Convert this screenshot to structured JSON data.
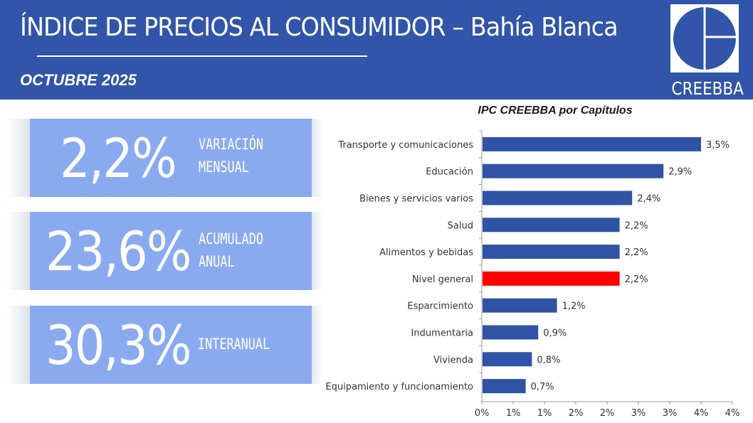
{
  "header": {
    "title": "ÍNDICE DE PRECIOS AL CONSUMIDOR – Bahía Blanca",
    "subtitle": "OCTUBRE 2025",
    "logo_text": "CREEBBA",
    "background": "#3155a8"
  },
  "kpis": [
    {
      "value": "2,2%",
      "label_line1": "VARIACIÓN",
      "label_line2": "MENSUAL"
    },
    {
      "value": "23,6%",
      "label_line1": "ACUMULADO",
      "label_line2": "ANUAL"
    },
    {
      "value": "30,3%",
      "label_line1": "INTERANUAL",
      "label_line2": ""
    }
  ],
  "chart_data": {
    "type": "bar",
    "orientation": "horizontal",
    "title": "IPC CREEBBA por Capítulos",
    "categories": [
      "Transporte y comunicaciones",
      "Educación",
      "Bienes y servicios varios",
      "Salud",
      "Alimentos y bebidas",
      "Nivel general",
      "Esparcimiento",
      "Indumentaria",
      "Vivienda",
      "Equipamiento y funcionamiento"
    ],
    "values": [
      3.5,
      2.9,
      2.4,
      2.2,
      2.2,
      2.2,
      1.2,
      0.9,
      0.8,
      0.7
    ],
    "data_labels": [
      "3,5%",
      "2,9%",
      "2,4%",
      "2,2%",
      "2,2%",
      "2,2%",
      "1,2%",
      "0,9%",
      "0,8%",
      "0,7%"
    ],
    "highlight_category": "Nivel general",
    "bar_color": "#2f53a5",
    "highlight_color": "#ff0000",
    "xlim": [
      0,
      4
    ],
    "x_ticks": [
      0,
      0.5,
      1,
      1.5,
      2,
      2.5,
      3,
      3.5,
      4
    ],
    "x_tick_labels": [
      "0%",
      "1%",
      "1%",
      "2%",
      "2%",
      "3%",
      "3%",
      "4%",
      "4%"
    ],
    "grid": false,
    "legend": "none"
  }
}
